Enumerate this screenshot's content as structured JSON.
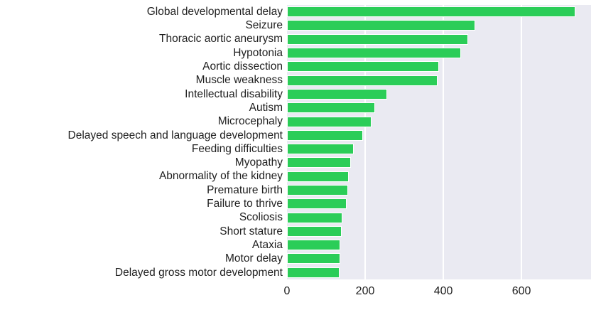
{
  "chart_data": {
    "type": "bar",
    "orientation": "horizontal",
    "title": "",
    "xlabel": "",
    "ylabel": "",
    "categories": [
      "Global developmental delay",
      "Seizure",
      "Thoracic aortic aneurysm",
      "Hypotonia",
      "Aortic dissection",
      "Muscle weakness",
      "Intellectual disability",
      "Autism",
      "Microcephaly",
      "Delayed speech and language development",
      "Feeding difficulties",
      "Myopathy",
      "Abnormality of the kidney",
      "Premature birth",
      "Failure to thrive",
      "Scoliosis",
      "Short stature",
      "Ataxia",
      "Motor delay",
      "Delayed gross motor development"
    ],
    "values": [
      735,
      478,
      460,
      442,
      385,
      381,
      252,
      222,
      212,
      190,
      168,
      160,
      155,
      152,
      149,
      138,
      136,
      133,
      132,
      130
    ],
    "xticks": [
      0,
      200,
      400,
      600
    ],
    "xlim": [
      0,
      778
    ],
    "grid": true,
    "legend": false,
    "colors": {
      "bar_fill": "#2bcd58",
      "bar_edge": "#ffffff",
      "plot_background": "#eaeaf2",
      "gridline": "#ffffff",
      "tick_text": "#1f1f1f",
      "figure_background": "#ffffff"
    }
  }
}
